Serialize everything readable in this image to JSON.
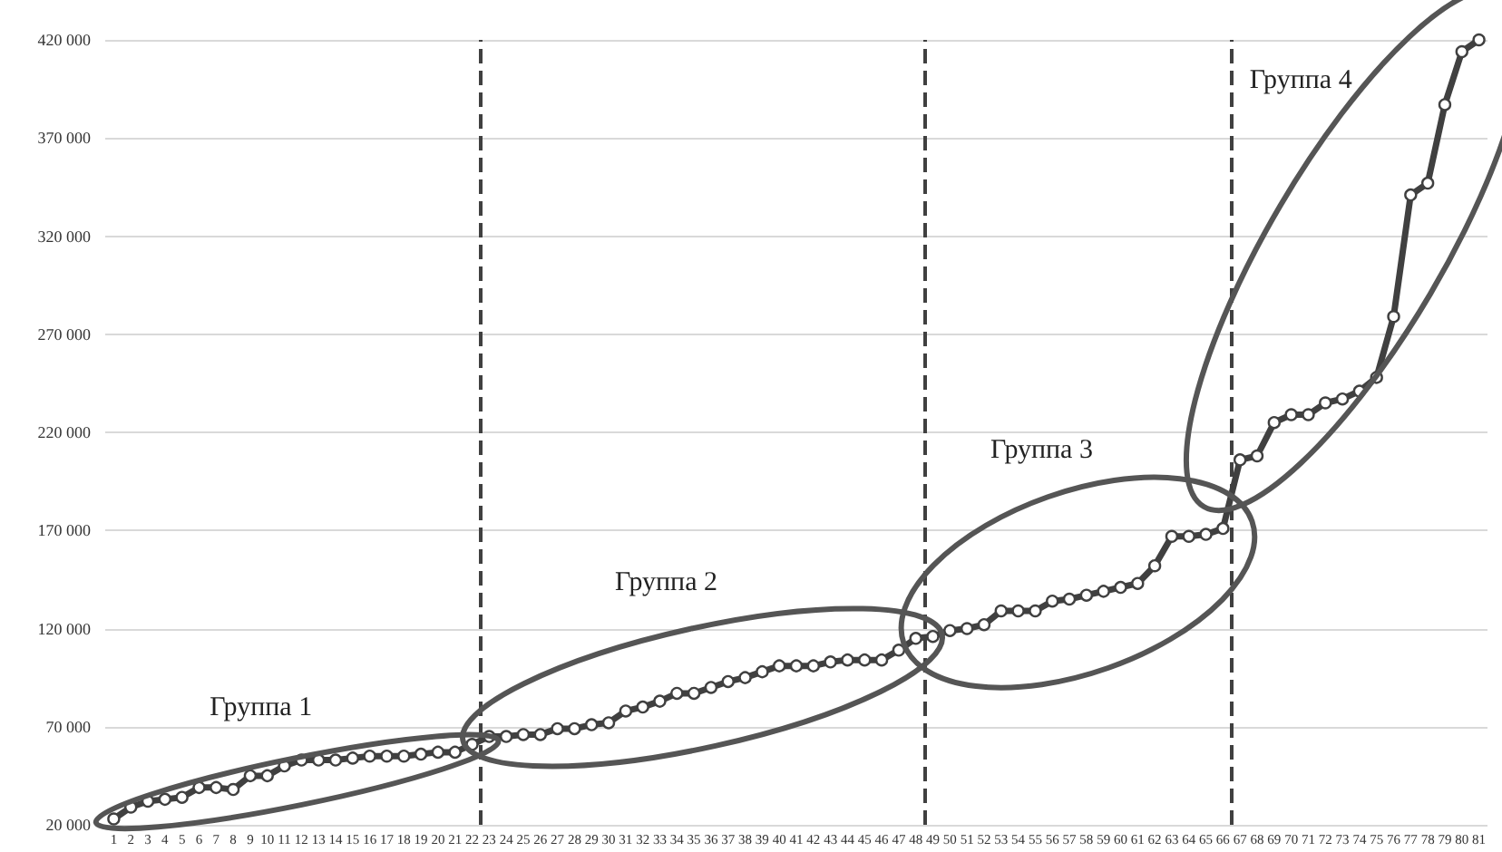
{
  "chart_data": {
    "type": "line",
    "x": [
      1,
      2,
      3,
      4,
      5,
      6,
      7,
      8,
      9,
      10,
      11,
      12,
      13,
      14,
      15,
      16,
      17,
      18,
      19,
      20,
      21,
      22,
      23,
      24,
      25,
      26,
      27,
      28,
      29,
      30,
      31,
      32,
      33,
      34,
      35,
      36,
      37,
      38,
      39,
      40,
      41,
      42,
      43,
      44,
      45,
      46,
      47,
      48,
      49,
      50,
      51,
      52,
      53,
      54,
      55,
      56,
      57,
      58,
      59,
      60,
      61,
      62,
      63,
      64,
      65,
      66,
      67,
      68,
      69,
      70,
      71,
      72,
      73,
      74,
      75,
      76,
      77,
      78,
      79,
      80,
      81
    ],
    "series": [
      {
        "color": "#404040",
        "values": [
          23000,
          29000,
          32000,
          33000,
          34000,
          39000,
          39000,
          38000,
          45000,
          45000,
          50000,
          53000,
          53000,
          53000,
          54000,
          55000,
          55000,
          55000,
          56000,
          57000,
          57000,
          61000,
          65000,
          65000,
          66000,
          66000,
          69000,
          69000,
          71000,
          72000,
          78000,
          80000,
          83000,
          87000,
          87000,
          90000,
          93000,
          95000,
          98000,
          101000,
          101000,
          101000,
          103000,
          104000,
          104000,
          104000,
          109000,
          115000,
          116000,
          119000,
          120000,
          122000,
          129000,
          129000,
          129000,
          134000,
          135000,
          137000,
          139000,
          141000,
          143000,
          152000,
          167000,
          167000,
          168000,
          171000,
          206000,
          208000,
          225000,
          229000,
          229000,
          235000,
          237000,
          241000,
          248000,
          279000,
          341000,
          347000,
          387000,
          414000,
          420000
        ]
      }
    ],
    "xlim": [
      0.5,
      81.5
    ],
    "xticks": [
      1,
      2,
      3,
      4,
      5,
      6,
      7,
      8,
      9,
      10,
      11,
      12,
      13,
      14,
      15,
      16,
      17,
      18,
      19,
      20,
      21,
      22,
      23,
      24,
      25,
      26,
      27,
      28,
      29,
      30,
      31,
      32,
      33,
      34,
      35,
      36,
      37,
      38,
      39,
      40,
      41,
      42,
      43,
      44,
      45,
      46,
      47,
      48,
      49,
      50,
      51,
      52,
      53,
      54,
      55,
      56,
      57,
      58,
      59,
      60,
      61,
      62,
      63,
      64,
      65,
      66,
      67,
      68,
      69,
      70,
      71,
      72,
      73,
      74,
      75,
      76,
      77,
      78,
      79,
      80,
      81
    ],
    "ylim": [
      20000,
      420000
    ],
    "yticks": [
      {
        "value": 20000,
        "label": "20 000"
      },
      {
        "value": 70000,
        "label": "70 000"
      },
      {
        "value": 120000,
        "label": "120 000"
      },
      {
        "value": 170000,
        "label": "170 000"
      },
      {
        "value": 220000,
        "label": "220 000"
      },
      {
        "value": 270000,
        "label": "270 000"
      },
      {
        "value": 320000,
        "label": "320 000"
      },
      {
        "value": 370000,
        "label": "370 000"
      },
      {
        "value": 420000,
        "label": "420 000"
      }
    ],
    "ref_lines": [
      {
        "axis": "x",
        "value": 22.5,
        "color": "#404040",
        "line_style": "dashed"
      },
      {
        "axis": "x",
        "value": 48.5,
        "color": "#404040",
        "line_style": "dashed"
      },
      {
        "axis": "x",
        "value": 66.5,
        "color": "#404040",
        "line_style": "dashed"
      }
    ],
    "annotations": [
      "Группа 1",
      "Группа 2",
      "Группа 3",
      "Группа 4"
    ],
    "grid": "y",
    "marker": "circle",
    "line_style": "solid"
  }
}
